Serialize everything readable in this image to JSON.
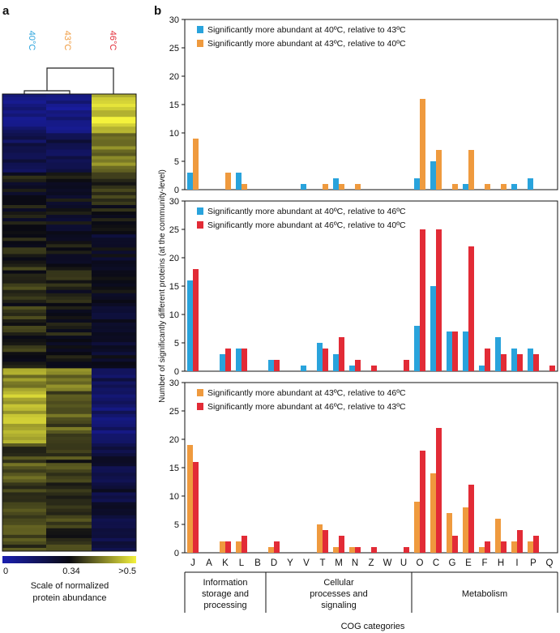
{
  "panel_a": {
    "label": "a",
    "samples": [
      {
        "name": "40°C",
        "color": "#29a3dc"
      },
      {
        "name": "43°C",
        "color": "#ef9a3e"
      },
      {
        "name": "46°C",
        "color": "#e22b36"
      }
    ],
    "scale_ticks": [
      "0",
      "0.34",
      ">0.5"
    ],
    "scale_title_line1": "Scale of normalized",
    "scale_title_line2": "protein abundance",
    "colors": {
      "low": "#1a1fb0",
      "mid": "#0a0a12",
      "high": "#f4f23c"
    }
  },
  "panel_b_label": "b",
  "chart_data": {
    "type": "bar",
    "categories": [
      "J",
      "A",
      "K",
      "L",
      "B",
      "D",
      "Y",
      "V",
      "T",
      "M",
      "N",
      "Z",
      "W",
      "U",
      "O",
      "C",
      "G",
      "E",
      "F",
      "H",
      "I",
      "P",
      "Q"
    ],
    "ylim": [
      0,
      30
    ],
    "yticks": [
      0,
      5,
      10,
      15,
      20,
      25,
      30
    ],
    "ylabel": "Number of significantly different proteins (at the community-level)",
    "xlabel": "COG categories",
    "groups": [
      {
        "label_line1": "Information",
        "label_line2": "storage and",
        "label_line3": "processing",
        "from": "J",
        "to": "B"
      },
      {
        "label_line1": "Cellular",
        "label_line2": "processes and",
        "label_line3": "signaling",
        "from": "D",
        "to": "U"
      },
      {
        "label_line1": "",
        "label_line2": "Metabolism",
        "label_line3": "",
        "from": "O",
        "to": "Q"
      }
    ],
    "panels": [
      {
        "series": [
          {
            "name": "Significantly more abundant at 40ºC, relative to 43ºC",
            "color": "#29a3dc",
            "values": [
              3,
              0,
              0,
              3,
              0,
              0,
              0,
              1,
              0,
              2,
              0,
              0,
              0,
              0,
              2,
              5,
              0,
              1,
              0,
              0,
              1,
              2,
              0
            ]
          },
          {
            "name": "Significantly more abundant at 43ºC, relative to 40ºC",
            "color": "#ef9a3e",
            "values": [
              9,
              0,
              3,
              1,
              0,
              0,
              0,
              0,
              1,
              1,
              1,
              0,
              0,
              0,
              16,
              7,
              1,
              7,
              1,
              1,
              0,
              0,
              0
            ]
          }
        ]
      },
      {
        "series": [
          {
            "name": "Significantly more abundant at 40ºC, relative to 46ºC",
            "color": "#29a3dc",
            "values": [
              16,
              0,
              3,
              4,
              0,
              2,
              0,
              1,
              5,
              3,
              1,
              0,
              0,
              0,
              8,
              15,
              7,
              7,
              1,
              6,
              4,
              4,
              0
            ]
          },
          {
            "name": "Significantly more abundant at 46ºC, relative to 40ºC",
            "color": "#e22b36",
            "values": [
              18,
              0,
              4,
              4,
              0,
              2,
              0,
              0,
              4,
              6,
              2,
              1,
              0,
              2,
              25,
              25,
              7,
              22,
              4,
              3,
              3,
              3,
              1
            ]
          }
        ]
      },
      {
        "series": [
          {
            "name": "Significantly more abundant at 43ºC, relative to 46ºC",
            "color": "#ef9a3e",
            "values": [
              19,
              0,
              2,
              2,
              0,
              1,
              0,
              0,
              5,
              1,
              1,
              0,
              0,
              0,
              9,
              14,
              7,
              8,
              1,
              6,
              2,
              2,
              0
            ]
          },
          {
            "name": "Significantly more abundant at 46ºC, relative to 43ºC",
            "color": "#e22b36",
            "values": [
              16,
              0,
              2,
              3,
              0,
              2,
              0,
              0,
              4,
              3,
              1,
              1,
              0,
              1,
              18,
              22,
              3,
              12,
              2,
              2,
              4,
              3,
              0
            ]
          }
        ]
      }
    ]
  }
}
